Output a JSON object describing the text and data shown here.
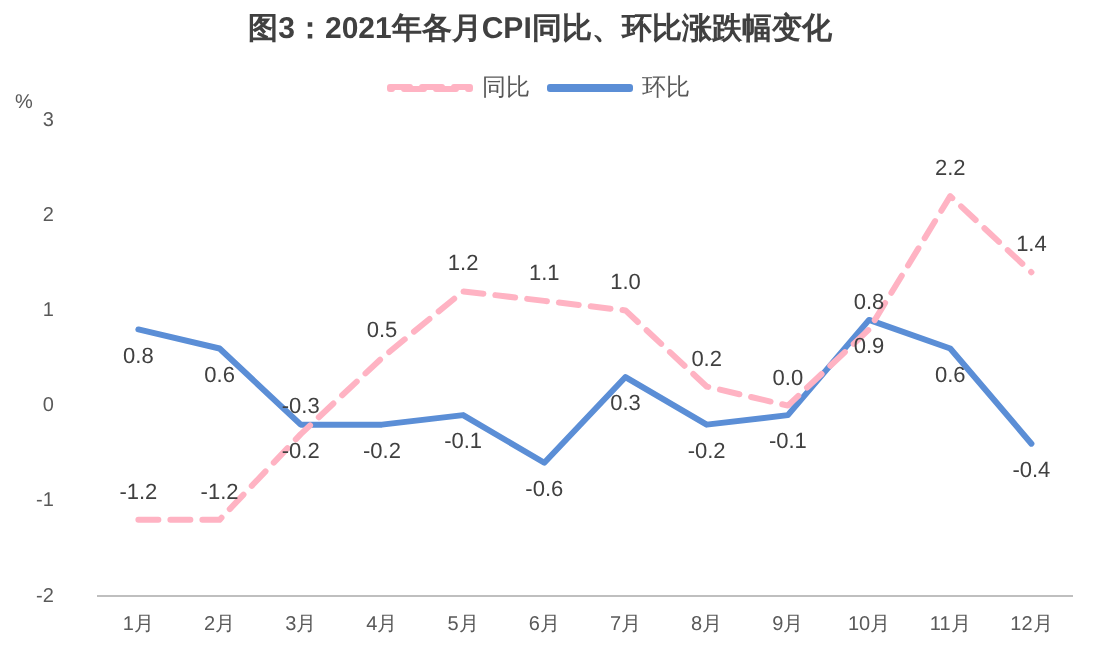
{
  "chart_data": {
    "type": "line",
    "title": "图3：2021年各月CPI同比、环比涨跌幅变化",
    "ylabel": "%",
    "categories": [
      "1月",
      "2月",
      "3月",
      "4月",
      "5月",
      "6月",
      "7月",
      "8月",
      "9月",
      "10月",
      "11月",
      "12月"
    ],
    "series": [
      {
        "name": "同比",
        "color": "#ffb3c3",
        "line_style": "dashed",
        "values": [
          -1.2,
          -1.2,
          -0.3,
          0.5,
          1.2,
          1.1,
          1.0,
          0.2,
          0.0,
          0.8,
          2.2,
          1.4
        ],
        "value_labels": [
          "-1.2",
          "-1.2",
          "-0.3",
          "0.5",
          "1.2",
          "1.1",
          "1.0",
          "0.2",
          "0.0",
          "0.8",
          "2.2",
          "1.4"
        ]
      },
      {
        "name": "环比",
        "color": "#5b8ed6",
        "line_style": "solid",
        "values": [
          0.8,
          0.6,
          -0.2,
          -0.2,
          -0.1,
          -0.6,
          0.3,
          -0.2,
          -0.1,
          0.9,
          0.6,
          -0.4
        ],
        "value_labels": [
          "0.8",
          "0.6",
          "-0.2",
          "-0.2",
          "-0.1",
          "-0.6",
          "0.3",
          "-0.2",
          "-0.1",
          "0.9",
          "0.6",
          "-0.4"
        ]
      }
    ],
    "ylim": [
      -2,
      3
    ],
    "yticks": [
      -2,
      -1,
      0,
      1,
      2,
      3
    ],
    "grid": false,
    "legend": "top",
    "marker": "none"
  }
}
